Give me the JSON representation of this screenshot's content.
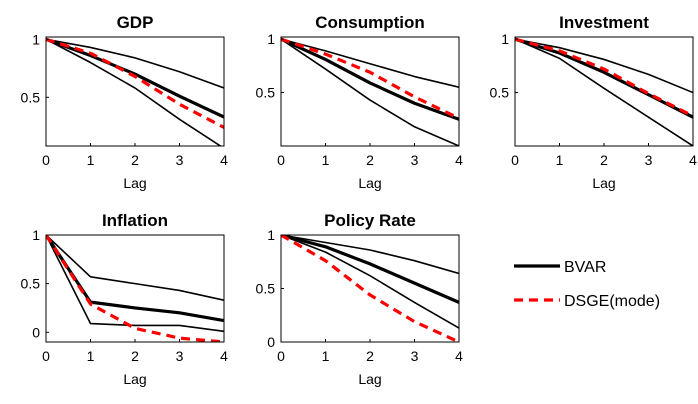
{
  "chart_data": [
    {
      "type": "line",
      "title": "GDP",
      "xlabel": "Lag",
      "ylabel": "",
      "x": [
        0,
        1,
        2,
        3,
        4
      ],
      "xlim": [
        0,
        4
      ],
      "ylim": [
        0.08,
        1.02
      ],
      "yticks": [
        0.5,
        1
      ],
      "ytick_labels": [
        "0.5",
        "1"
      ],
      "xtick_labels": [
        "0",
        "1",
        "2",
        "3",
        "4"
      ],
      "series": [
        {
          "name": "BVAR",
          "values": [
            1,
            0.86,
            0.7,
            0.51,
            0.33
          ]
        },
        {
          "values": [
            1,
            0.93,
            0.84,
            0.72,
            0.58
          ]
        },
        {
          "values": [
            1,
            0.8,
            0.58,
            0.31,
            0.06
          ]
        },
        {
          "name": "DSGE(mode)",
          "values": [
            1,
            0.88,
            0.68,
            0.44,
            0.24
          ]
        }
      ]
    },
    {
      "type": "line",
      "title": "Consumption",
      "xlabel": "Lag",
      "ylabel": "",
      "x": [
        0,
        1,
        2,
        3,
        4
      ],
      "xlim": [
        0,
        4
      ],
      "ylim": [
        0.0,
        1.02
      ],
      "yticks": [
        0.5,
        1
      ],
      "ytick_labels": [
        "0.5",
        "1"
      ],
      "xtick_labels": [
        "0",
        "1",
        "2",
        "3",
        "4"
      ],
      "series": [
        {
          "name": "BVAR",
          "values": [
            1,
            0.81,
            0.59,
            0.4,
            0.25
          ]
        },
        {
          "values": [
            1,
            0.89,
            0.77,
            0.65,
            0.55
          ]
        },
        {
          "values": [
            1,
            0.72,
            0.43,
            0.18,
            0.0
          ]
        },
        {
          "name": "DSGE(mode)",
          "values": [
            1,
            0.86,
            0.69,
            0.46,
            0.26
          ]
        }
      ]
    },
    {
      "type": "line",
      "title": "Investment",
      "xlabel": "Lag",
      "ylabel": "",
      "x": [
        0,
        1,
        2,
        3,
        4
      ],
      "xlim": [
        0,
        4
      ],
      "ylim": [
        0.0,
        1.02
      ],
      "yticks": [
        0.5,
        1
      ],
      "ytick_labels": [
        "0.5",
        "1"
      ],
      "xtick_labels": [
        "0",
        "1",
        "2",
        "3",
        "4"
      ],
      "series": [
        {
          "name": "BVAR",
          "values": [
            1,
            0.87,
            0.69,
            0.48,
            0.27
          ]
        },
        {
          "values": [
            1,
            0.92,
            0.81,
            0.67,
            0.5
          ]
        },
        {
          "values": [
            1,
            0.82,
            0.54,
            0.27,
            0.0
          ]
        },
        {
          "name": "DSGE(mode)",
          "values": [
            1,
            0.89,
            0.72,
            0.49,
            0.28
          ]
        }
      ]
    },
    {
      "type": "line",
      "title": "Inflation",
      "xlabel": "Lag",
      "ylabel": "",
      "x": [
        0,
        1,
        2,
        3,
        4
      ],
      "xlim": [
        0,
        4
      ],
      "ylim": [
        -0.1,
        1.0
      ],
      "yticks": [
        0,
        0.5,
        1
      ],
      "ytick_labels": [
        "0",
        "0.5",
        "1"
      ],
      "xtick_labels": [
        "0",
        "1",
        "2",
        "3",
        "4"
      ],
      "series": [
        {
          "name": "BVAR",
          "values": [
            1,
            0.31,
            0.25,
            0.2,
            0.12
          ]
        },
        {
          "values": [
            1,
            0.57,
            0.5,
            0.43,
            0.33
          ]
        },
        {
          "values": [
            1,
            0.09,
            0.07,
            0.07,
            0.01
          ]
        },
        {
          "name": "DSGE(mode)",
          "values": [
            1,
            0.29,
            0.04,
            -0.06,
            -0.1
          ]
        }
      ]
    },
    {
      "type": "line",
      "title": "Policy Rate",
      "xlabel": "Lag",
      "ylabel": "",
      "x": [
        0,
        1,
        2,
        3,
        4
      ],
      "xlim": [
        0,
        4
      ],
      "ylim": [
        0,
        1
      ],
      "yticks": [
        0,
        0.5,
        1
      ],
      "ytick_labels": [
        "0",
        "0.5",
        "1"
      ],
      "xtick_labels": [
        "0",
        "1",
        "2",
        "3",
        "4"
      ],
      "series": [
        {
          "name": "BVAR",
          "values": [
            1,
            0.89,
            0.73,
            0.55,
            0.37
          ]
        },
        {
          "values": [
            1,
            0.93,
            0.86,
            0.76,
            0.64
          ]
        },
        {
          "values": [
            1,
            0.84,
            0.62,
            0.37,
            0.13
          ]
        },
        {
          "name": "DSGE(mode)",
          "values": [
            1,
            0.76,
            0.44,
            0.19,
            0.0
          ]
        }
      ]
    }
  ],
  "legend": {
    "placement": "right",
    "items": [
      {
        "label": "BVAR",
        "style": "solid",
        "color": "#000000"
      },
      {
        "label": "DSGE(mode)",
        "style": "dashed",
        "color": "#ff0000"
      }
    ]
  },
  "colors": {
    "bvar": "#000000",
    "band": "#000000",
    "dsge": "#ff0000"
  }
}
